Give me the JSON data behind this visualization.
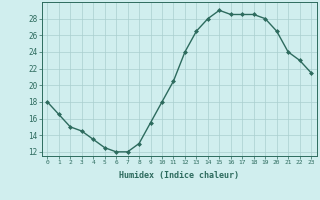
{
  "x": [
    0,
    1,
    2,
    3,
    4,
    5,
    6,
    7,
    8,
    9,
    10,
    11,
    12,
    13,
    14,
    15,
    16,
    17,
    18,
    19,
    20,
    21,
    22,
    23
  ],
  "y": [
    18,
    16.5,
    15,
    14.5,
    13.5,
    12.5,
    12,
    12,
    13,
    15.5,
    18,
    20.5,
    24,
    26.5,
    28,
    29,
    28.5,
    28.5,
    28.5,
    28,
    26.5,
    24,
    23,
    21.5
  ],
  "xlabel": "Humidex (Indice chaleur)",
  "ylim": [
    11.5,
    30.0
  ],
  "xlim": [
    -0.5,
    23.5
  ],
  "yticks": [
    12,
    14,
    16,
    18,
    20,
    22,
    24,
    26,
    28
  ],
  "xticks": [
    0,
    1,
    2,
    3,
    4,
    5,
    6,
    7,
    8,
    9,
    10,
    11,
    12,
    13,
    14,
    15,
    16,
    17,
    18,
    19,
    20,
    21,
    22,
    23
  ],
  "line_color": "#2d6b5e",
  "marker_color": "#2d6b5e",
  "bg_color": "#d0eeee",
  "grid_color": "#aacfcf",
  "axis_color": "#2d6b5e",
  "tick_label_color": "#2d6b5e",
  "xlabel_color": "#2d6b5e",
  "marker": "D",
  "markersize": 2.0,
  "linewidth": 1.0
}
